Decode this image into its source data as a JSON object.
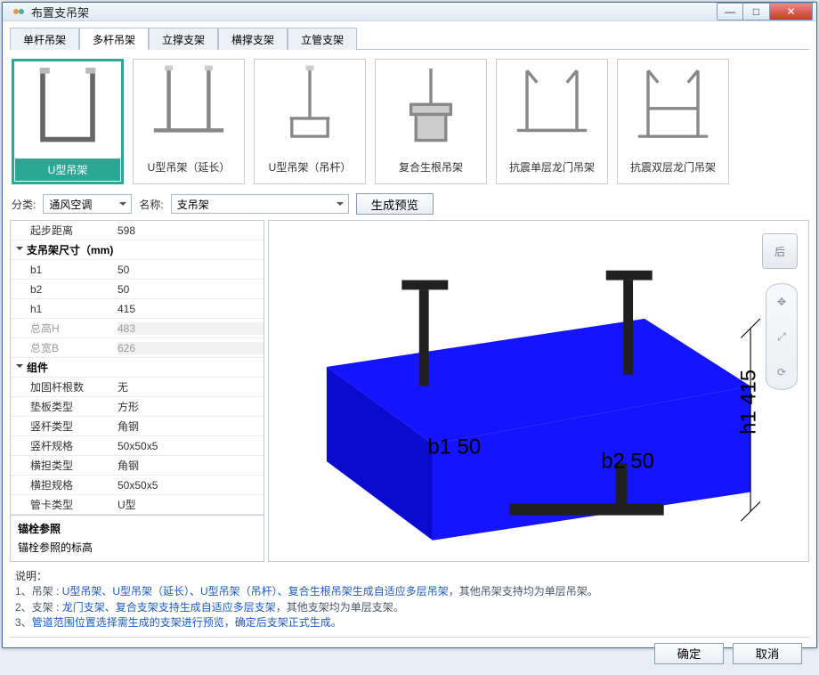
{
  "window": {
    "title": "布置支吊架"
  },
  "winbtns": {
    "min": "—",
    "max": "□",
    "close": "✕"
  },
  "tabs": [
    "单杆吊架",
    "多杆吊架",
    "立撑支架",
    "横撑支架",
    "立管支架"
  ],
  "activeTab": 1,
  "gallery": [
    {
      "label": "U型吊架"
    },
    {
      "label": "U型吊架（延长）"
    },
    {
      "label": "U型吊架（吊杆）"
    },
    {
      "label": "复合生根吊架"
    },
    {
      "label": "抗震单层龙门吊架"
    },
    {
      "label": "抗震双层龙门吊架"
    }
  ],
  "selectedGallery": 0,
  "filter": {
    "catLabel": "分类:",
    "catValue": "通风空调",
    "nameLabel": "名称:",
    "nameValue": "支吊架",
    "genBtn": "生成预览"
  },
  "props": [
    {
      "k": "起步距离",
      "v": "598"
    },
    {
      "group": "支吊架尺寸（mm)"
    },
    {
      "k": "b1",
      "v": "50"
    },
    {
      "k": "b2",
      "v": "50"
    },
    {
      "k": "h1",
      "v": "415"
    },
    {
      "k": "总高H",
      "v": "483",
      "dim": true
    },
    {
      "k": "总宽B",
      "v": "626",
      "dim": true
    },
    {
      "group": "组件"
    },
    {
      "k": "加固杆根数",
      "v": "无"
    },
    {
      "k": "垫板类型",
      "v": "方形"
    },
    {
      "k": "竖杆类型",
      "v": "角钢"
    },
    {
      "k": "竖杆规格",
      "v": "50x50x5"
    },
    {
      "k": "横担类型",
      "v": "角钢"
    },
    {
      "k": "横担规格",
      "v": "50x50x5"
    },
    {
      "k": "管卡类型",
      "v": "U型"
    }
  ],
  "anchor": {
    "h": "锚栓参照",
    "t": "锚栓参照的标高"
  },
  "viewCube": "后",
  "viewLabels": {
    "b1": "b1 50",
    "b2": "b2 50",
    "h1": "h1 415"
  },
  "viewColors": {
    "duct": "#1414ff",
    "ductDark": "#0b0bd0",
    "hanger": "#202020",
    "dim": "#000000"
  },
  "notes": {
    "head": "说明：",
    "lines": [
      {
        "pre": "1、吊架 : ",
        "link": "U型吊架、U型吊架（延长）、U型吊架（吊杆）、复合生根吊架生成自适应多层吊架",
        "post": "，其他吊架支持均为单层吊架。"
      },
      {
        "pre": "2、支架 : ",
        "link": "龙门支架、复合支架支持生成自适应多层支架",
        "post": "，其他支架均为单层支架。"
      },
      {
        "pre": "3、",
        "link": "管道范围位置选择需生成的支架进行预览，确定后支架正式生成。",
        "post": ""
      }
    ]
  },
  "footer": {
    "ok": "确定",
    "cancel": "取消"
  }
}
